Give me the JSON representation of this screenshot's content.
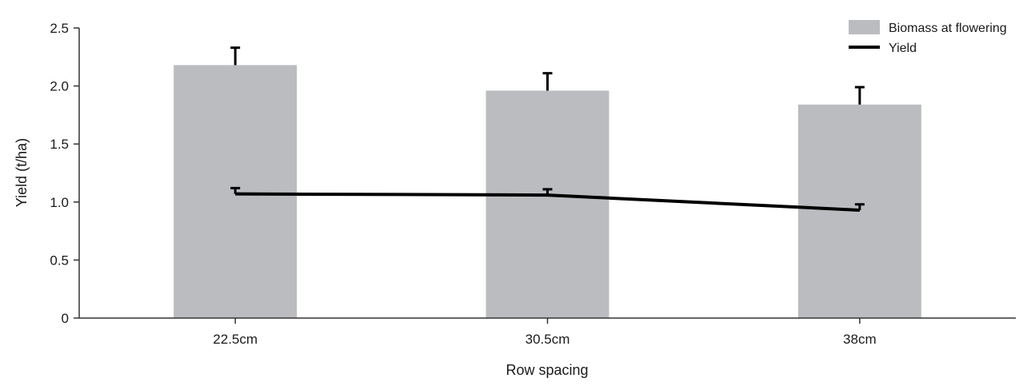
{
  "chart_data": {
    "type": "bar",
    "title": "",
    "xlabel": "Row spacing",
    "ylabel": "Yield (t/ha)",
    "ylim": [
      0,
      2.5
    ],
    "yticks": [
      0,
      0.5,
      1.0,
      1.5,
      2.0,
      2.5
    ],
    "ytick_labels": [
      "0",
      "0.5",
      "1.0",
      "1.5",
      "2.0",
      "2.5"
    ],
    "categories": [
      "22.5cm",
      "30.5cm",
      "38cm"
    ],
    "series": [
      {
        "name": "Biomass at flowering",
        "type": "bar",
        "color": "#bbbcc0",
        "values": [
          2.18,
          1.96,
          1.84
        ],
        "error_upper": [
          0.15,
          0.15,
          0.15
        ]
      },
      {
        "name": "Yield",
        "type": "line",
        "color": "#000000",
        "values": [
          1.07,
          1.06,
          0.93
        ],
        "error_upper": [
          0.05,
          0.05,
          0.05
        ]
      }
    ],
    "grid": false,
    "legend_position": "top-right"
  }
}
